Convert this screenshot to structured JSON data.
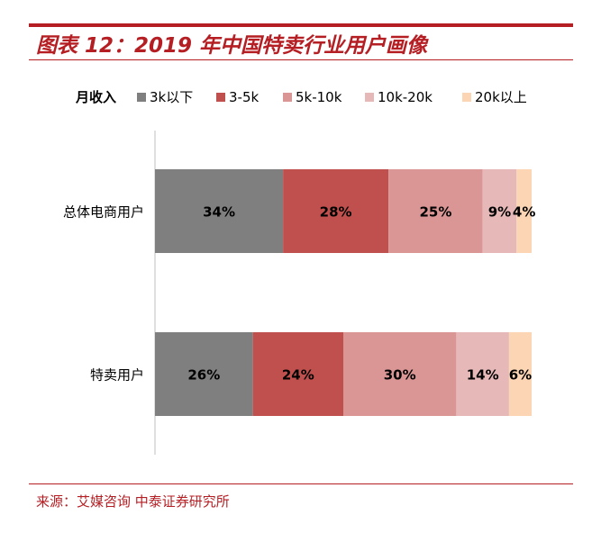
{
  "header": {
    "title": "图表 12：2019 年中国特卖行业用户画像"
  },
  "footer": {
    "source": "来源：艾媒咨询 中泰证券研究所"
  },
  "chart_data": {
    "type": "bar",
    "orientation": "horizontal",
    "stacked": true,
    "legend_title": "月收入",
    "legend_position": "top",
    "categories": [
      "总体电商用户",
      "特卖用户"
    ],
    "series": [
      {
        "name": "3k以下",
        "values": [
          34,
          26
        ],
        "labels": [
          "34%",
          "26%"
        ],
        "color": "#7f7f7f"
      },
      {
        "name": "3-5k",
        "values": [
          28,
          24
        ],
        "labels": [
          "28%",
          "24%"
        ],
        "color": "#c0504d"
      },
      {
        "name": "5k-10k",
        "values": [
          25,
          30
        ],
        "labels": [
          "25%",
          "30%"
        ],
        "color": "#d99694"
      },
      {
        "name": "10k-20k",
        "values": [
          9,
          14
        ],
        "labels": [
          "9%",
          "14%"
        ],
        "color": "#e6b9b8"
      },
      {
        "name": "20k以上",
        "values": [
          4,
          6
        ],
        "labels": [
          "4%",
          "6%"
        ],
        "color": "#fcd5b5"
      }
    ],
    "xlim": [
      0,
      100
    ],
    "grid": false
  }
}
